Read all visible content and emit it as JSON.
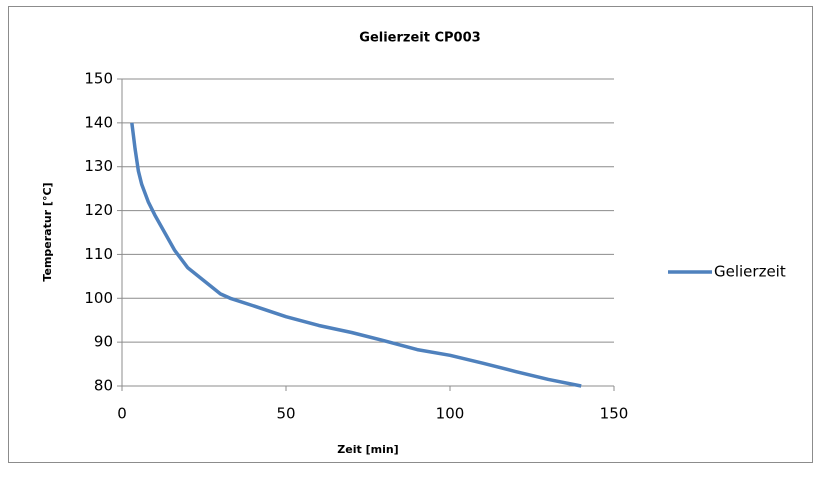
{
  "chart_data": {
    "type": "line",
    "title": "Gelierzeit CP003",
    "x_label": "Zeit [min]",
    "y_label": "Temperatur [°C]",
    "x": [
      3,
      4,
      5,
      6,
      8,
      10,
      13,
      16,
      20,
      25,
      30,
      33,
      40,
      50,
      60,
      70,
      80,
      90,
      100,
      110,
      120,
      130,
      140
    ],
    "series": [
      {
        "name": "Gelierzeit",
        "color": "#4f81bd",
        "values": [
          140,
          134,
          129,
          126,
          122,
          119,
          115,
          111,
          107,
          104,
          101,
          100,
          98.3,
          95.8,
          93.8,
          92.2,
          90.3,
          88.3,
          87,
          85.2,
          83.3,
          81.5,
          80
        ]
      }
    ],
    "xlim": [
      0,
      150
    ],
    "xticks": [
      0,
      50,
      100,
      150
    ],
    "ylim": [
      80,
      150
    ],
    "yticks": [
      80,
      90,
      100,
      110,
      120,
      130,
      140,
      150
    ],
    "grid": true,
    "legend": "right"
  }
}
